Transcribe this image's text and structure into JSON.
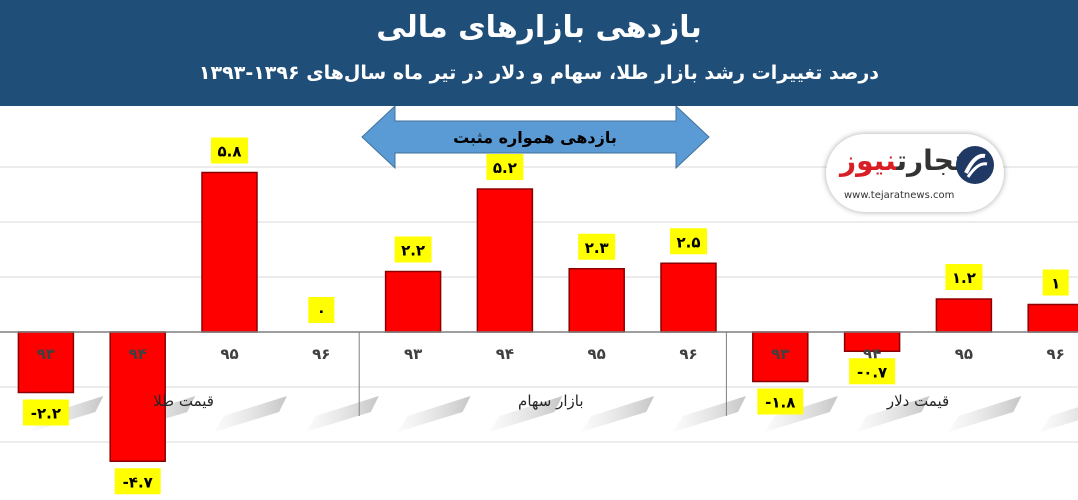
{
  "header": {
    "title": "بازدهی بازارهای مالی",
    "subtitle": "درصد تغییرات رشد بازار طلا، سهام و دلار در تیر ماه سال‌های ۱۳۹۶-۱۳۹۳"
  },
  "banner": {
    "label": "بازدهی همواره مثبت"
  },
  "logo": {
    "name_dark": "تجارت",
    "name_red": "نیوز",
    "url": "www.tejaratnews.com"
  },
  "colors": {
    "header_bg": "#1f4e79",
    "bar": "#ff0000",
    "label_bg": "#ffff00",
    "arrow": "#5b9bd5"
  },
  "chart_data": {
    "type": "bar",
    "groups": [
      {
        "name": "قیمت طلا",
        "categories": [
          "۹۳",
          "۹۴",
          "۹۵",
          "۹۶"
        ],
        "values": [
          -2.2,
          -4.7,
          5.8,
          0
        ],
        "labels": [
          "-۲.۲",
          "-۴.۷",
          "۵.۸",
          "۰"
        ]
      },
      {
        "name": "بازار سهام",
        "categories": [
          "۹۳",
          "۹۴",
          "۹۵",
          "۹۶"
        ],
        "values": [
          2.2,
          5.2,
          2.3,
          2.5
        ],
        "labels": [
          "۲.۲",
          "۵.۲",
          "۲.۳",
          "۲.۵"
        ]
      },
      {
        "name": "قیمت دلار",
        "categories": [
          "۹۳",
          "۹۴",
          "۹۵",
          "۹۶"
        ],
        "values": [
          -1.8,
          -0.7,
          1.2,
          1
        ],
        "labels": [
          "-۱.۸",
          "-۰.۷",
          "۱.۲",
          "۱"
        ]
      }
    ],
    "ylim": [
      -5,
      6
    ],
    "grid": true
  }
}
